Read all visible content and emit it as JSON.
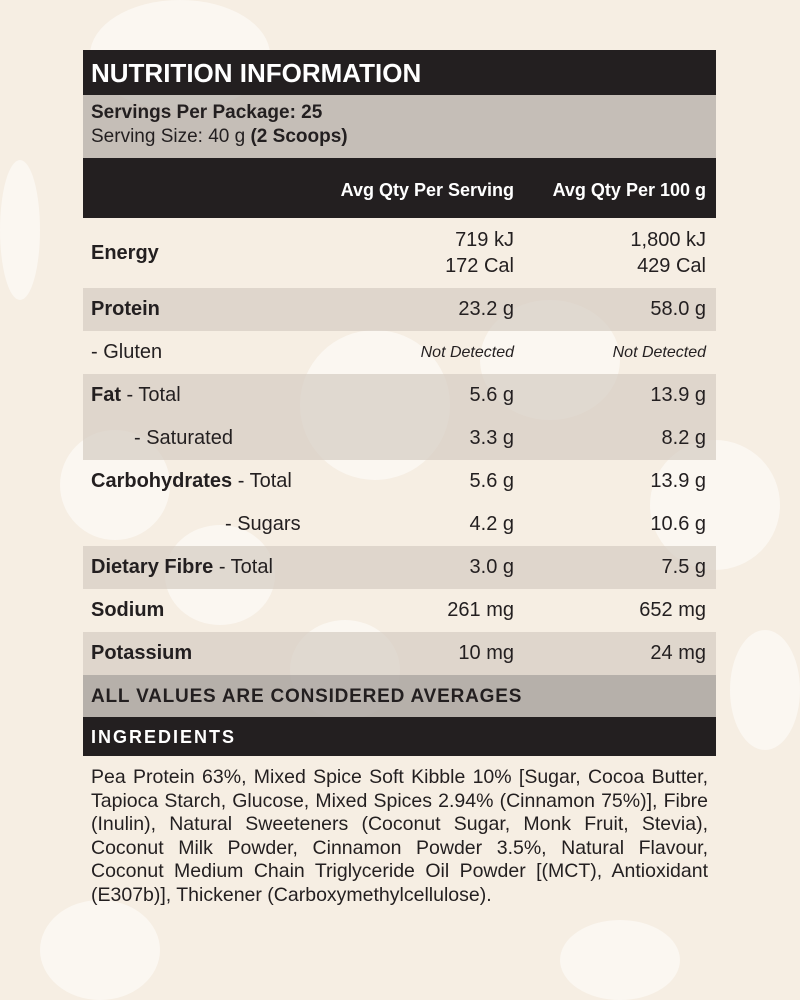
{
  "title": "NUTRITION INFORMATION",
  "servings": {
    "per_package_label": "Servings Per Package: 25",
    "size_label": "Serving Size: 40 g",
    "size_scoops": "(2 Scoops)"
  },
  "columns": {
    "per_serving": "Avg Qty Per Serving",
    "per_100g": "Avg Qty Per 100 g"
  },
  "rows": [
    {
      "bold": "Energy",
      "rest": "",
      "serving": "719 kJ",
      "serving2": "172 Cal",
      "per100": "1,800 kJ",
      "per100_2": "429 Cal"
    },
    {
      "bold": "Protein",
      "rest": "",
      "serving": "23.2 g",
      "per100": "58.0 g"
    },
    {
      "bold": "",
      "rest": "- Gluten",
      "serving": "Not Detected",
      "per100": "Not Detected"
    },
    {
      "bold": "Fat",
      "rest": " - Total",
      "serving": "5.6 g",
      "per100": "13.9 g"
    },
    {
      "bold": "",
      "rest": "- Saturated",
      "serving": "3.3 g",
      "per100": "8.2 g"
    },
    {
      "bold": "Carbohydrates",
      "rest": " - Total",
      "serving": "5.6 g",
      "per100": "13.9 g"
    },
    {
      "bold": "",
      "rest": "- Sugars",
      "serving": "4.2 g",
      "per100": "10.6 g"
    },
    {
      "bold": "Dietary Fibre",
      "rest": " - Total",
      "serving": "3.0 g",
      "per100": "7.5 g"
    },
    {
      "bold": "Sodium",
      "rest": "",
      "serving": "261 mg",
      "per100": "652 mg"
    },
    {
      "bold": "Potassium",
      "rest": "",
      "serving": "10 mg",
      "per100": "24 mg"
    }
  ],
  "averages_note": "ALL VALUES ARE CONSIDERED AVERAGES",
  "ingredients": {
    "heading": "INGREDIENTS",
    "text": "Pea Protein 63%, Mixed Spice Soft Kibble 10% [Sugar, Cocoa Butter, Tapioca Starch, Glucose, Mixed Spices 2.94% (Cinnamon 75%)], Fibre (Inulin), Natural Sweeteners (Coconut Sugar, Monk Fruit, Stevia), Coconut Milk Powder, Cinnamon Powder 3.5%, Natural Flavour, Coconut Medium Chain Triglyceride Oil Powder [(MCT), Antioxidant (E307b)], Thickener (Carboxymethylcellulose)."
  },
  "colors": {
    "dark": "#231f20",
    "background": "#f6eee3"
  }
}
